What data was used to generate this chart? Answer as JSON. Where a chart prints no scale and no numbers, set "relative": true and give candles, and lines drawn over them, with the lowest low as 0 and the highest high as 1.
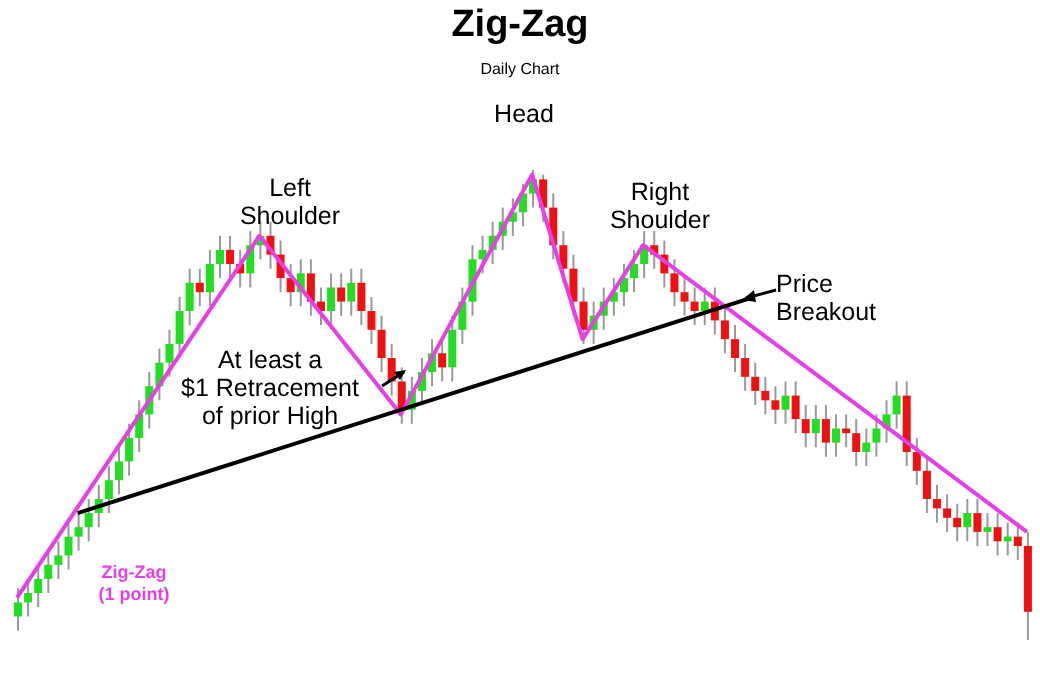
{
  "chart_data": {
    "type": "candlestick",
    "title": "Zig-Zag",
    "subtitle": "Daily Chart",
    "relative": true,
    "colors": [
      "#22dd22",
      "#22dd22",
      "#22dd22",
      "#22dd22",
      "#22dd22",
      "#22dd22",
      "#22dd22",
      "#22dd22",
      "#22dd22",
      "#22dd22",
      "#22dd22",
      "#22dd22",
      "#22dd22",
      "#22dd22",
      "#22dd22",
      "#22dd22",
      "#22dd22",
      "#22dd22",
      "#ee1111",
      "#22dd22",
      "#22dd22",
      "#ee1111",
      "#ee1111",
      "#22dd22",
      "#22dd22",
      "#ee1111",
      "#ee1111",
      "#ee1111",
      "#22dd22",
      "#ee1111",
      "#ee1111",
      "#22dd22",
      "#ee1111",
      "#22dd22",
      "#ee1111",
      "#ee1111",
      "#ee1111",
      "#ee1111",
      "#ee1111",
      "#22dd22",
      "#22dd22",
      "#22dd22",
      "#ee1111",
      "#22dd22",
      "#22dd22",
      "#22dd22",
      "#22dd22",
      "#22dd22",
      "#22dd22",
      "#22dd22",
      "#22dd22",
      "#22dd22",
      "#ee1111",
      "#ee1111",
      "#ee1111",
      "#ee1111",
      "#ee1111",
      "#22dd22",
      "#22dd22",
      "#22dd22",
      "#22dd22",
      "#22dd22",
      "#22dd22",
      "#ee1111",
      "#ee1111",
      "#ee1111",
      "#ee1111",
      "#ee1111",
      "#22dd22",
      "#ee1111",
      "#ee1111",
      "#ee1111",
      "#ee1111",
      "#ee1111",
      "#ee1111",
      "#ee1111",
      "#22dd22",
      "#ee1111",
      "#ee1111",
      "#22dd22",
      "#ee1111",
      "#22dd22",
      "#ee1111",
      "#ee1111",
      "#22dd22",
      "#22dd22",
      "#22dd22",
      "#22dd22",
      "#ee1111",
      "#ee1111",
      "#ee1111",
      "#ee1111",
      "#ee1111",
      "#ee1111",
      "#22dd22",
      "#ee1111",
      "#22dd22",
      "#ee1111",
      "#22dd22",
      "#ee1111",
      "#ee1111"
    ],
    "categories": [
      null,
      null,
      null,
      null,
      null,
      null,
      null,
      null,
      null,
      null,
      null,
      null,
      null,
      null,
      null,
      null,
      null,
      null,
      null,
      null,
      null,
      null,
      null,
      null,
      null,
      null,
      null,
      null,
      null,
      null,
      null,
      null,
      null,
      null,
      null,
      null,
      null,
      null,
      null,
      null,
      null,
      null,
      null,
      null,
      null,
      null,
      null,
      null,
      null,
      null,
      null,
      null,
      null,
      null,
      null,
      null,
      null,
      null,
      null,
      null,
      null,
      null,
      null,
      null,
      null,
      null,
      null,
      null,
      null,
      null,
      null,
      null,
      null,
      null,
      null,
      null,
      null,
      null,
      null,
      null,
      null,
      null,
      null,
      null,
      null,
      null,
      null,
      null,
      null,
      null,
      null,
      null,
      null,
      null,
      null,
      null,
      null,
      null,
      null,
      null,
      null
    ],
    "ohlc": [
      [
        0.05,
        0.11,
        0.02,
        0.08
      ],
      [
        0.08,
        0.13,
        0.05,
        0.1
      ],
      [
        0.1,
        0.16,
        0.07,
        0.13
      ],
      [
        0.13,
        0.19,
        0.1,
        0.16
      ],
      [
        0.16,
        0.21,
        0.13,
        0.18
      ],
      [
        0.18,
        0.25,
        0.15,
        0.22
      ],
      [
        0.22,
        0.27,
        0.19,
        0.24
      ],
      [
        0.24,
        0.3,
        0.21,
        0.27
      ],
      [
        0.27,
        0.33,
        0.24,
        0.3
      ],
      [
        0.3,
        0.37,
        0.27,
        0.34
      ],
      [
        0.34,
        0.41,
        0.31,
        0.38
      ],
      [
        0.38,
        0.46,
        0.35,
        0.43
      ],
      [
        0.43,
        0.51,
        0.4,
        0.48
      ],
      [
        0.48,
        0.57,
        0.45,
        0.54
      ],
      [
        0.54,
        0.62,
        0.51,
        0.59
      ],
      [
        0.59,
        0.66,
        0.56,
        0.63
      ],
      [
        0.63,
        0.73,
        0.6,
        0.7
      ],
      [
        0.7,
        0.79,
        0.67,
        0.76
      ],
      [
        0.76,
        0.79,
        0.71,
        0.74
      ],
      [
        0.74,
        0.83,
        0.71,
        0.8
      ],
      [
        0.8,
        0.86,
        0.77,
        0.83
      ],
      [
        0.83,
        0.86,
        0.77,
        0.8
      ],
      [
        0.8,
        0.83,
        0.75,
        0.78
      ],
      [
        0.78,
        0.87,
        0.75,
        0.84
      ],
      [
        0.84,
        0.89,
        0.81,
        0.86
      ],
      [
        0.86,
        0.89,
        0.79,
        0.82
      ],
      [
        0.82,
        0.85,
        0.74,
        0.77
      ],
      [
        0.77,
        0.8,
        0.71,
        0.74
      ],
      [
        0.74,
        0.81,
        0.71,
        0.78
      ],
      [
        0.78,
        0.81,
        0.69,
        0.72
      ],
      [
        0.72,
        0.75,
        0.67,
        0.7
      ],
      [
        0.7,
        0.78,
        0.67,
        0.75
      ],
      [
        0.75,
        0.78,
        0.69,
        0.72
      ],
      [
        0.72,
        0.79,
        0.69,
        0.76
      ],
      [
        0.76,
        0.79,
        0.67,
        0.7
      ],
      [
        0.7,
        0.73,
        0.63,
        0.66
      ],
      [
        0.66,
        0.69,
        0.57,
        0.6
      ],
      [
        0.6,
        0.63,
        0.52,
        0.55
      ],
      [
        0.55,
        0.58,
        0.46,
        0.49
      ],
      [
        0.49,
        0.56,
        0.46,
        0.53
      ],
      [
        0.53,
        0.6,
        0.5,
        0.57
      ],
      [
        0.57,
        0.64,
        0.54,
        0.61
      ],
      [
        0.61,
        0.64,
        0.55,
        0.58
      ],
      [
        0.58,
        0.69,
        0.55,
        0.66
      ],
      [
        0.66,
        0.75,
        0.63,
        0.72
      ],
      [
        0.72,
        0.84,
        0.69,
        0.81
      ],
      [
        0.81,
        0.86,
        0.78,
        0.83
      ],
      [
        0.83,
        0.89,
        0.8,
        0.86
      ],
      [
        0.86,
        0.92,
        0.83,
        0.89
      ],
      [
        0.89,
        0.94,
        0.86,
        0.91
      ],
      [
        0.91,
        0.97,
        0.88,
        0.95
      ],
      [
        0.95,
        1.0,
        0.92,
        0.98
      ],
      [
        0.98,
        0.99,
        0.89,
        0.92
      ],
      [
        0.92,
        0.95,
        0.81,
        0.84
      ],
      [
        0.84,
        0.87,
        0.76,
        0.79
      ],
      [
        0.79,
        0.82,
        0.69,
        0.72
      ],
      [
        0.72,
        0.75,
        0.63,
        0.66
      ],
      [
        0.66,
        0.72,
        0.63,
        0.69
      ],
      [
        0.69,
        0.75,
        0.66,
        0.72
      ],
      [
        0.72,
        0.77,
        0.69,
        0.74
      ],
      [
        0.74,
        0.8,
        0.71,
        0.77
      ],
      [
        0.77,
        0.83,
        0.74,
        0.8
      ],
      [
        0.8,
        0.87,
        0.77,
        0.84
      ],
      [
        0.84,
        0.87,
        0.79,
        0.82
      ],
      [
        0.82,
        0.85,
        0.75,
        0.78
      ],
      [
        0.78,
        0.81,
        0.71,
        0.74
      ],
      [
        0.74,
        0.77,
        0.69,
        0.72
      ],
      [
        0.72,
        0.75,
        0.67,
        0.7
      ],
      [
        0.7,
        0.75,
        0.67,
        0.72
      ],
      [
        0.72,
        0.75,
        0.65,
        0.68
      ],
      [
        0.68,
        0.71,
        0.61,
        0.64
      ],
      [
        0.64,
        0.67,
        0.57,
        0.6
      ],
      [
        0.6,
        0.63,
        0.53,
        0.56
      ],
      [
        0.56,
        0.59,
        0.5,
        0.53
      ],
      [
        0.53,
        0.56,
        0.48,
        0.51
      ],
      [
        0.51,
        0.54,
        0.46,
        0.49
      ],
      [
        0.49,
        0.55,
        0.46,
        0.52
      ],
      [
        0.52,
        0.55,
        0.44,
        0.47
      ],
      [
        0.47,
        0.5,
        0.41,
        0.44
      ],
      [
        0.44,
        0.5,
        0.41,
        0.47
      ],
      [
        0.47,
        0.5,
        0.39,
        0.42
      ],
      [
        0.42,
        0.48,
        0.39,
        0.45
      ],
      [
        0.45,
        0.48,
        0.41,
        0.44
      ],
      [
        0.44,
        0.47,
        0.37,
        0.4
      ],
      [
        0.4,
        0.45,
        0.37,
        0.42
      ],
      [
        0.42,
        0.48,
        0.39,
        0.45
      ],
      [
        0.45,
        0.51,
        0.42,
        0.48
      ],
      [
        0.48,
        0.55,
        0.45,
        0.52
      ],
      [
        0.52,
        0.55,
        0.37,
        0.4
      ],
      [
        0.4,
        0.43,
        0.33,
        0.36
      ],
      [
        0.36,
        0.39,
        0.27,
        0.3
      ],
      [
        0.3,
        0.33,
        0.25,
        0.28
      ],
      [
        0.28,
        0.31,
        0.23,
        0.26
      ],
      [
        0.26,
        0.29,
        0.21,
        0.24
      ],
      [
        0.24,
        0.3,
        0.21,
        0.27
      ],
      [
        0.27,
        0.3,
        0.2,
        0.23
      ],
      [
        0.23,
        0.27,
        0.2,
        0.24
      ],
      [
        0.24,
        0.27,
        0.18,
        0.21
      ],
      [
        0.21,
        0.25,
        0.18,
        0.22
      ],
      [
        0.22,
        0.25,
        0.17,
        0.2
      ],
      [
        0.2,
        0.23,
        0.0,
        0.06
      ]
    ],
    "series": [
      {
        "type": "line",
        "color": "#e83ee8",
        "values": [
          0.09,
          null,
          null,
          null,
          null,
          null,
          null,
          null,
          null,
          null,
          null,
          null,
          null,
          null,
          null,
          null,
          null,
          null,
          null,
          null,
          null,
          null,
          null,
          null,
          0.86,
          null,
          null,
          null,
          null,
          null,
          null,
          null,
          null,
          null,
          null,
          null,
          null,
          null,
          0.48,
          null,
          null,
          null,
          null,
          null,
          null,
          null,
          null,
          null,
          null,
          null,
          null,
          0.99,
          null,
          null,
          null,
          null,
          0.64,
          null,
          null,
          null,
          null,
          null,
          0.84,
          null,
          null,
          null,
          null,
          null,
          null,
          null,
          null,
          null,
          null,
          null,
          null,
          null,
          null,
          null,
          null,
          null,
          null,
          null,
          null,
          null,
          null,
          null,
          null,
          null,
          null,
          null,
          null,
          null,
          null,
          null,
          null,
          null,
          null,
          null,
          null,
          null,
          0.23
        ]
      },
      {
        "type": "line",
        "color": "#000000",
        "values": [
          null,
          null,
          null,
          null,
          null,
          null,
          0.27,
          null,
          null,
          null,
          null,
          null,
          null,
          null,
          null,
          null,
          null,
          null,
          null,
          null,
          null,
          null,
          null,
          null,
          null,
          null,
          null,
          null,
          null,
          null,
          null,
          null,
          null,
          null,
          null,
          null,
          null,
          null,
          null,
          null,
          null,
          null,
          null,
          null,
          null,
          null,
          null,
          null,
          null,
          null,
          null,
          null,
          null,
          null,
          null,
          null,
          null,
          null,
          null,
          null,
          null,
          null,
          null,
          null,
          null,
          null,
          null,
          null,
          null,
          null,
          null,
          null,
          null,
          0.73,
          null,
          null,
          null,
          null,
          null,
          null,
          null,
          null,
          null,
          null,
          null,
          null,
          null,
          null,
          null,
          null,
          null,
          null,
          null,
          null,
          null,
          null,
          null,
          null,
          null,
          null,
          null
        ]
      }
    ],
    "annotations": [
      "Left Shoulder",
      "Head",
      "Right Shoulder",
      "Price Breakout",
      "At least a",
      "$1 Retracement",
      "of prior High",
      "Zig-Zag",
      "(1 point)"
    ]
  }
}
